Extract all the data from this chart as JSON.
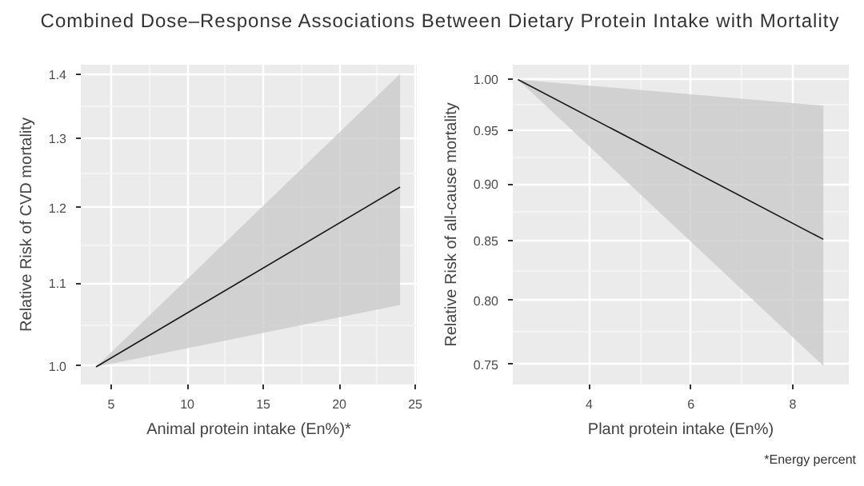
{
  "chart_data": [
    {
      "type": "line",
      "title": "Combined Dose–Response Associations Between Dietary Protein Intake with Mortality",
      "xlabel": "Animal protein intake (En%)*",
      "ylabel": "Relative Risk of CVD mortality",
      "log": "y",
      "grid": true,
      "series": [
        {
          "color": "#1a1a1a",
          "x": [
            4,
            24
          ],
          "values": [
            0.999,
            1.229
          ],
          "lower": [
            0.999,
            1.073
          ],
          "upper": [
            0.999,
            1.4
          ]
        }
      ],
      "xlim": [
        3.0,
        25.1
      ],
      "xticks": [
        5,
        10,
        15,
        20,
        25
      ],
      "ylim": [
        0.979,
        1.415
      ],
      "yticks": [
        {
          "value": 1.0,
          "label": "1.0"
        },
        1.1,
        1.2,
        1.3,
        1.4
      ]
    },
    {
      "type": "line",
      "xlabel": "Plant protein intake (En%)",
      "ylabel": "Relative Risk of all-cause mortality",
      "log": "y",
      "grid": true,
      "series": [
        {
          "color": "#1a1a1a",
          "x": [
            2.6,
            8.6
          ],
          "values": [
            1.0,
            0.851
          ],
          "lower": [
            1.0,
            0.749
          ],
          "upper": [
            1.0,
            0.974
          ]
        }
      ],
      "xlim": [
        2.5,
        9.1
      ],
      "xticks": [
        4,
        6,
        8
      ],
      "ylim": [
        0.735,
        1.015
      ],
      "yticks": [
        {
          "value": 1.0,
          "label": "1.00"
        },
        0.95,
        {
          "value": 0.9,
          "label": "0.90"
        },
        0.85,
        {
          "value": 0.8,
          "label": "0.80"
        },
        0.75
      ],
      "annotations": [
        "*Energy percent"
      ]
    }
  ]
}
